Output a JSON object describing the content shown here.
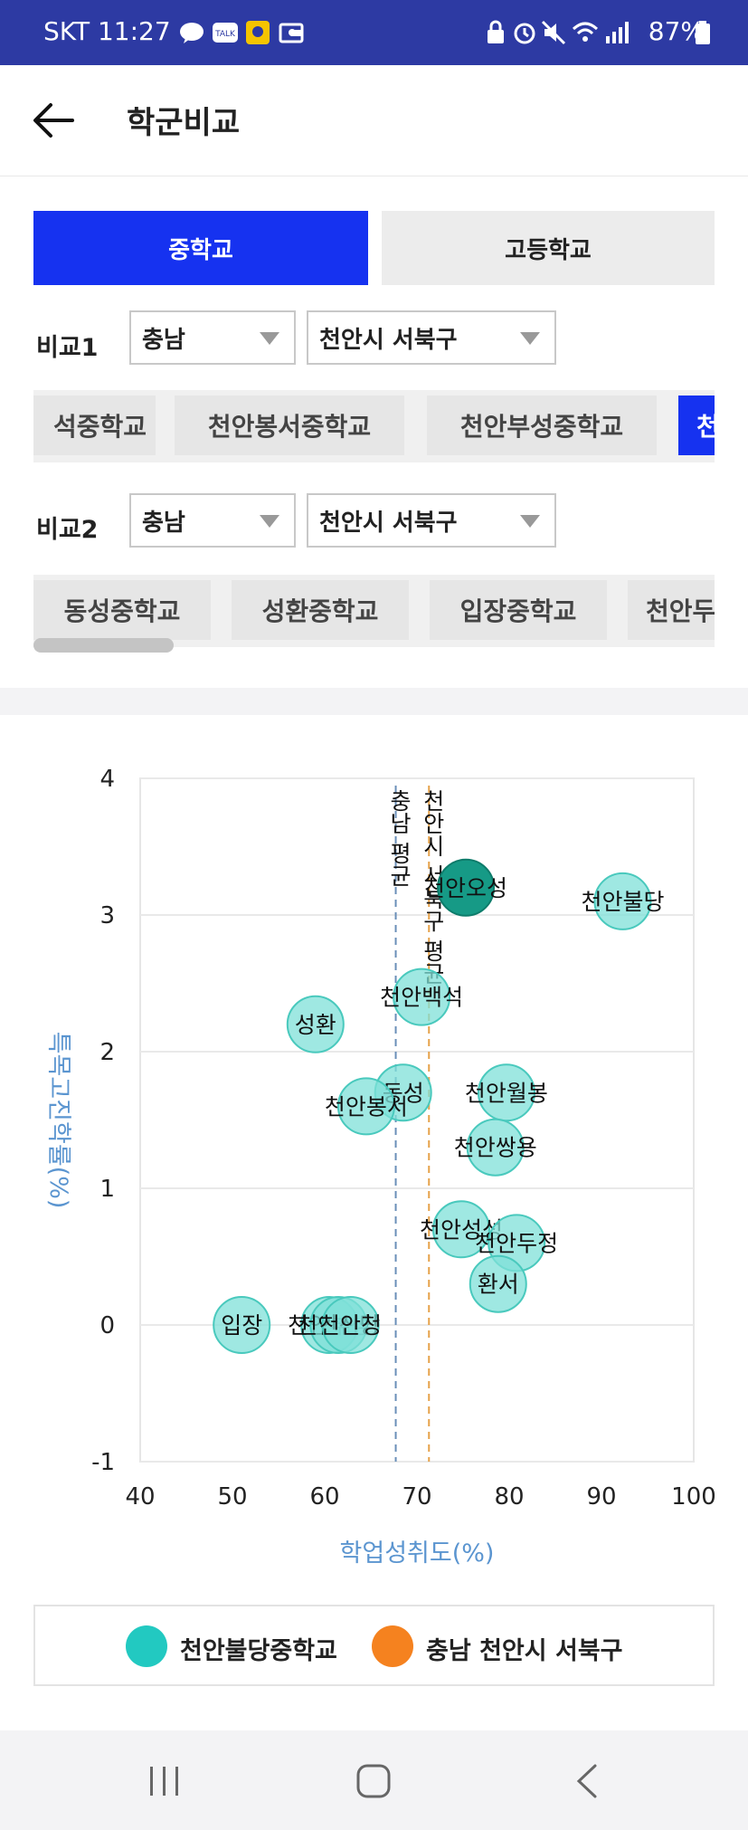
{
  "status": {
    "time": "SKT 11:27",
    "battery": "87%"
  },
  "header": {
    "title": "학군비교"
  },
  "tabs": {
    "middle": "중학교",
    "high": "고등학교"
  },
  "compare1": {
    "label": "비교1",
    "region": "충남",
    "district": "천안시 서북구",
    "schools": [
      "석중학교",
      "천안봉서중학교",
      "천안부성중학교",
      "천"
    ]
  },
  "compare2": {
    "label": "비교2",
    "region": "충남",
    "district": "천안시 서북구",
    "schools": [
      "동성중학교",
      "성환중학교",
      "입장중학교",
      "천안두"
    ]
  },
  "legend": {
    "school": "천안불당중학교",
    "region": "충남 천안시 서북구"
  },
  "colors": {
    "accent": "#1632f0",
    "bubble": "#7fe0d8",
    "bubble_highlight": "#169a86",
    "legend_school": "#22c9c1",
    "legend_region": "#f5821f",
    "axis_label": "#5b95d0"
  },
  "chart_data": {
    "type": "scatter",
    "xlabel": "학업성취도(%)",
    "ylabel": "특목고진학률(%)",
    "xlim": [
      40,
      100
    ],
    "ylim": [
      -1,
      4
    ],
    "xticks": [
      "40",
      "50",
      "60",
      "70",
      "80",
      "90",
      "100"
    ],
    "yticks": [
      "-1",
      "0",
      "1",
      "2",
      "3",
      "4"
    ],
    "reference_lines": [
      {
        "label": "충남 평균",
        "x": 67.7,
        "color": "#6a8fb8"
      },
      {
        "label": "천안시 서북구 평균",
        "x": 71.3,
        "color": "#e6a24a"
      }
    ],
    "points": [
      {
        "label": "천안불당",
        "x": 92.3,
        "y": 3.1,
        "highlight": false
      },
      {
        "label": "천안오성",
        "x": 75.3,
        "y": 3.2,
        "highlight": true
      },
      {
        "label": "천안백석",
        "x": 70.5,
        "y": 2.4,
        "highlight": false
      },
      {
        "label": "성환",
        "x": 59.0,
        "y": 2.2,
        "highlight": false
      },
      {
        "label": "동성",
        "x": 68.5,
        "y": 1.7,
        "highlight": false
      },
      {
        "label": "천안봉서",
        "x": 64.5,
        "y": 1.6,
        "highlight": false
      },
      {
        "label": "천안월봉",
        "x": 79.7,
        "y": 1.7,
        "highlight": false
      },
      {
        "label": "천안쌍용",
        "x": 78.5,
        "y": 1.3,
        "highlight": false
      },
      {
        "label": "천안성성",
        "x": 74.8,
        "y": 0.7,
        "highlight": false
      },
      {
        "label": "천안두정",
        "x": 80.8,
        "y": 0.6,
        "highlight": false
      },
      {
        "label": "환서",
        "x": 78.8,
        "y": 0.3,
        "highlight": false
      },
      {
        "label": "입장",
        "x": 51.0,
        "y": 0.0,
        "highlight": false
      },
      {
        "label": "천안부성",
        "x": 60.5,
        "y": 0.0,
        "highlight": false
      },
      {
        "label": "천안신당",
        "x": 61.5,
        "y": 0.0,
        "highlight": false
      },
      {
        "label": "천안청",
        "x": 62.8,
        "y": 0.0,
        "highlight": false
      }
    ]
  }
}
